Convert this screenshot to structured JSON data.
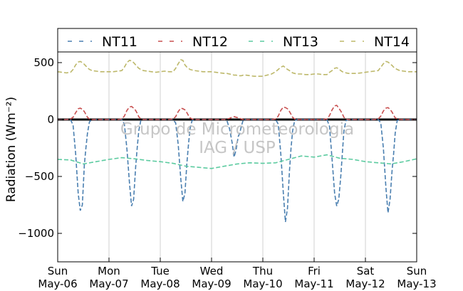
{
  "chart_data": {
    "type": "line",
    "ylabel": "Radiation (Wm⁻²)",
    "ylim": [
      -1250,
      600
    ],
    "yticks": [
      500,
      0,
      -500,
      -1000
    ],
    "ytick_labels": [
      "500",
      "0",
      "−500",
      "−1000"
    ],
    "xlim": [
      0,
      7
    ],
    "x_unit": "days",
    "xticks": [
      {
        "x": 0,
        "line1": "Sun",
        "line2": "May-06"
      },
      {
        "x": 1,
        "line1": "Mon",
        "line2": "May-07"
      },
      {
        "x": 2,
        "line1": "Tue",
        "line2": "May-08"
      },
      {
        "x": 3,
        "line1": "Wed",
        "line2": "May-09"
      },
      {
        "x": 4,
        "line1": "Thu",
        "line2": "May-10"
      },
      {
        "x": 5,
        "line1": "Fri",
        "line2": "May-11"
      },
      {
        "x": 6,
        "line1": "Sat",
        "line2": "May-12"
      },
      {
        "x": 7,
        "line1": "Sun",
        "line2": "May-13"
      }
    ],
    "grid": "vertical",
    "zero_line": true,
    "legend_position": "top",
    "watermark": [
      "Grupo de Micrometeorologia",
      "IAG / USP"
    ],
    "series": [
      {
        "name": "NT11",
        "color": "#4a7fb0",
        "x": [
          0.0,
          0.08,
          0.17,
          0.25,
          0.3,
          0.35,
          0.4,
          0.44,
          0.48,
          0.52,
          0.55,
          0.58,
          0.62,
          0.67,
          0.75,
          0.83,
          0.92,
          1.0,
          1.08,
          1.17,
          1.25,
          1.3,
          1.35,
          1.4,
          1.44,
          1.48,
          1.52,
          1.55,
          1.58,
          1.62,
          1.67,
          1.75,
          1.83,
          1.92,
          2.0,
          2.08,
          2.17,
          2.25,
          2.3,
          2.35,
          2.4,
          2.44,
          2.48,
          2.52,
          2.55,
          2.58,
          2.62,
          2.67,
          2.75,
          2.83,
          2.92,
          3.0,
          3.08,
          3.17,
          3.25,
          3.3,
          3.35,
          3.4,
          3.44,
          3.48,
          3.52,
          3.55,
          3.58,
          3.62,
          3.67,
          3.75,
          3.83,
          3.92,
          4.0,
          4.08,
          4.17,
          4.25,
          4.3,
          4.35,
          4.4,
          4.44,
          4.48,
          4.52,
          4.55,
          4.58,
          4.62,
          4.67,
          4.75,
          4.83,
          4.92,
          5.0,
          5.08,
          5.17,
          5.25,
          5.3,
          5.35,
          5.4,
          5.44,
          5.48,
          5.52,
          5.55,
          5.58,
          5.62,
          5.67,
          5.75,
          5.83,
          5.92,
          6.0,
          6.08,
          6.17,
          6.25,
          6.3,
          6.35,
          6.4,
          6.44,
          6.48,
          6.52,
          6.55,
          6.58,
          6.62,
          6.67,
          6.75,
          6.83,
          6.92,
          7.0
        ],
        "y": [
          0,
          0,
          0,
          0,
          -50,
          -300,
          -650,
          -800,
          -750,
          -400,
          -250,
          -120,
          -20,
          0,
          0,
          0,
          0,
          0,
          0,
          0,
          0,
          -40,
          -260,
          -560,
          -760,
          -700,
          -420,
          -250,
          -100,
          -10,
          0,
          0,
          0,
          0,
          0,
          0,
          0,
          0,
          -30,
          -220,
          -520,
          -720,
          -650,
          -380,
          -220,
          -80,
          -10,
          0,
          0,
          0,
          0,
          0,
          0,
          0,
          0,
          -10,
          -80,
          -200,
          -330,
          -260,
          -150,
          -120,
          -60,
          0,
          0,
          0,
          0,
          0,
          0,
          0,
          0,
          0,
          -40,
          -300,
          -650,
          -900,
          -780,
          -450,
          -250,
          -100,
          -10,
          0,
          0,
          0,
          0,
          0,
          0,
          0,
          0,
          -60,
          -350,
          -650,
          -760,
          -700,
          -500,
          -300,
          -100,
          -10,
          0,
          0,
          0,
          0,
          0,
          0,
          0,
          0,
          -30,
          -250,
          -600,
          -820,
          -700,
          -450,
          -300,
          -120,
          -10,
          0,
          0,
          0,
          0,
          0
        ]
      },
      {
        "name": "NT12",
        "color": "#c85050",
        "x": [
          0.0,
          0.08,
          0.17,
          0.25,
          0.3,
          0.35,
          0.4,
          0.44,
          0.48,
          0.52,
          0.55,
          0.58,
          0.62,
          0.67,
          0.75,
          0.83,
          0.92,
          1.0,
          1.08,
          1.17,
          1.25,
          1.3,
          1.35,
          1.4,
          1.44,
          1.48,
          1.52,
          1.55,
          1.58,
          1.62,
          1.67,
          1.75,
          1.83,
          1.92,
          2.0,
          2.08,
          2.17,
          2.25,
          2.3,
          2.35,
          2.4,
          2.44,
          2.48,
          2.52,
          2.55,
          2.58,
          2.62,
          2.67,
          2.75,
          2.83,
          2.92,
          3.0,
          3.08,
          3.17,
          3.25,
          3.3,
          3.35,
          3.4,
          3.44,
          3.48,
          3.52,
          3.55,
          3.58,
          3.62,
          3.67,
          3.75,
          3.83,
          3.92,
          4.0,
          4.08,
          4.17,
          4.25,
          4.3,
          4.35,
          4.4,
          4.44,
          4.48,
          4.52,
          4.55,
          4.58,
          4.62,
          4.67,
          4.75,
          4.83,
          4.92,
          5.0,
          5.08,
          5.17,
          5.25,
          5.3,
          5.35,
          5.4,
          5.44,
          5.48,
          5.52,
          5.55,
          5.58,
          5.62,
          5.67,
          5.75,
          5.83,
          5.92,
          6.0,
          6.08,
          6.17,
          6.25,
          6.3,
          6.35,
          6.4,
          6.44,
          6.48,
          6.52,
          6.55,
          6.58,
          6.62,
          6.67,
          6.75,
          6.83,
          6.92,
          7.0
        ],
        "y": [
          0,
          0,
          0,
          5,
          20,
          60,
          95,
          100,
          90,
          70,
          45,
          20,
          5,
          0,
          0,
          0,
          0,
          0,
          0,
          0,
          5,
          30,
          80,
          110,
          115,
          100,
          80,
          55,
          25,
          5,
          0,
          0,
          0,
          0,
          0,
          0,
          0,
          5,
          25,
          70,
          100,
          95,
          85,
          60,
          35,
          15,
          5,
          0,
          0,
          0,
          0,
          0,
          0,
          0,
          0,
          5,
          10,
          20,
          25,
          20,
          15,
          10,
          5,
          0,
          0,
          0,
          0,
          0,
          0,
          0,
          0,
          5,
          30,
          80,
          110,
          105,
          95,
          70,
          45,
          20,
          5,
          0,
          0,
          0,
          0,
          0,
          0,
          0,
          5,
          35,
          85,
          120,
          125,
          100,
          75,
          50,
          20,
          5,
          0,
          0,
          0,
          0,
          0,
          0,
          0,
          5,
          30,
          75,
          100,
          105,
          90,
          65,
          40,
          15,
          5,
          0,
          0,
          0,
          0,
          0
        ]
      },
      {
        "name": "NT13",
        "color": "#5ccba0",
        "x": [
          0.0,
          0.25,
          0.5,
          0.75,
          1.0,
          1.25,
          1.5,
          1.75,
          2.0,
          2.25,
          2.5,
          2.75,
          3.0,
          3.25,
          3.5,
          3.75,
          4.0,
          4.25,
          4.5,
          4.75,
          5.0,
          5.25,
          5.5,
          5.75,
          6.0,
          6.25,
          6.5,
          6.75,
          7.0
        ],
        "y": [
          -350,
          -355,
          -390,
          -370,
          -350,
          -335,
          -345,
          -360,
          -370,
          -385,
          -410,
          -420,
          -430,
          -410,
          -390,
          -380,
          -385,
          -380,
          -350,
          -320,
          -330,
          -310,
          -340,
          -350,
          -370,
          -380,
          -390,
          -370,
          -345
        ]
      },
      {
        "name": "NT14",
        "color": "#bdb86a",
        "x": [
          0.0,
          0.08,
          0.17,
          0.25,
          0.3,
          0.35,
          0.4,
          0.44,
          0.48,
          0.52,
          0.55,
          0.58,
          0.62,
          0.67,
          0.75,
          0.83,
          0.92,
          1.0,
          1.08,
          1.17,
          1.25,
          1.3,
          1.35,
          1.4,
          1.44,
          1.48,
          1.52,
          1.55,
          1.58,
          1.62,
          1.67,
          1.75,
          1.83,
          1.92,
          2.0,
          2.08,
          2.17,
          2.25,
          2.3,
          2.35,
          2.4,
          2.44,
          2.48,
          2.52,
          2.55,
          2.58,
          2.62,
          2.67,
          2.75,
          2.83,
          2.92,
          3.0,
          3.08,
          3.17,
          3.25,
          3.3,
          3.35,
          3.4,
          3.44,
          3.48,
          3.52,
          3.55,
          3.58,
          3.62,
          3.67,
          3.75,
          3.83,
          3.92,
          4.0,
          4.08,
          4.17,
          4.25,
          4.3,
          4.35,
          4.4,
          4.44,
          4.48,
          4.52,
          4.55,
          4.58,
          4.62,
          4.67,
          4.75,
          4.83,
          4.92,
          5.0,
          5.08,
          5.17,
          5.25,
          5.3,
          5.35,
          5.4,
          5.44,
          5.48,
          5.52,
          5.55,
          5.58,
          5.62,
          5.67,
          5.75,
          5.83,
          5.92,
          6.0,
          6.08,
          6.17,
          6.25,
          6.3,
          6.35,
          6.4,
          6.44,
          6.48,
          6.52,
          6.55,
          6.58,
          6.62,
          6.67,
          6.75,
          6.83,
          6.92,
          7.0
        ],
        "y": [
          420,
          415,
          410,
          415,
          440,
          480,
          505,
          510,
          500,
          485,
          470,
          455,
          440,
          430,
          425,
          420,
          420,
          420,
          420,
          425,
          430,
          460,
          500,
          520,
          515,
          500,
          480,
          465,
          450,
          440,
          430,
          425,
          420,
          415,
          420,
          425,
          420,
          420,
          450,
          490,
          525,
          520,
          480,
          460,
          450,
          440,
          435,
          430,
          425,
          420,
          420,
          420,
          415,
          410,
          405,
          405,
          400,
          395,
          390,
          390,
          385,
          385,
          385,
          390,
          390,
          385,
          380,
          380,
          380,
          390,
          400,
          420,
          440,
          460,
          470,
          455,
          440,
          430,
          420,
          410,
          405,
          400,
          400,
          395,
          395,
          400,
          400,
          395,
          395,
          415,
          430,
          450,
          455,
          445,
          430,
          420,
          415,
          410,
          405,
          405,
          405,
          410,
          415,
          420,
          425,
          430,
          460,
          490,
          510,
          505,
          490,
          475,
          460,
          450,
          440,
          430,
          425,
          420,
          420,
          420
        ]
      }
    ]
  }
}
